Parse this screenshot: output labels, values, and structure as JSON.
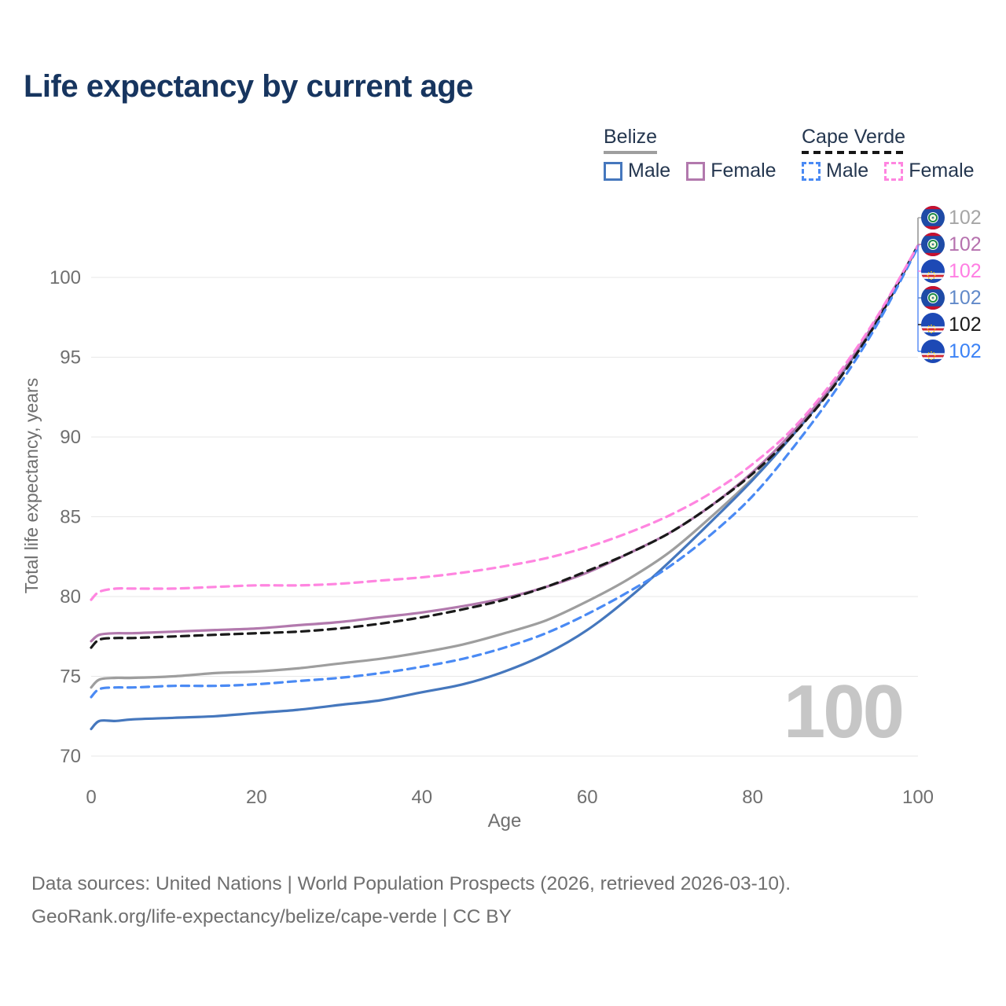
{
  "title": "Life expectancy by current age",
  "legend": {
    "groups": [
      {
        "label": "Belize",
        "underline_color": "#9e9e9e",
        "underline_style": "solid",
        "items": [
          {
            "label": "Male",
            "color": "#4577bd",
            "dash": false
          },
          {
            "label": "Female",
            "color": "#b279ad",
            "dash": false
          }
        ]
      },
      {
        "label": "Cape Verde",
        "underline_color": "#161616",
        "underline_style": "dashed",
        "items": [
          {
            "label": "Male",
            "color": "#4a8af4",
            "dash": true
          },
          {
            "label": "Female",
            "color": "#ff85e0",
            "dash": true
          }
        ]
      }
    ]
  },
  "chart_data": {
    "type": "line",
    "title": "Life expectancy by current age",
    "xlabel": "Age",
    "ylabel": "Total life expectancy, years",
    "x_ticks": [
      0,
      20,
      40,
      60,
      80,
      100
    ],
    "y_ticks": [
      70,
      75,
      80,
      85,
      90,
      95,
      100
    ],
    "xlim": [
      0,
      100
    ],
    "ylim": [
      68.5,
      103
    ],
    "grid": "horizontal-only",
    "legend_position": "top-right",
    "ages": [
      0,
      1,
      3,
      5,
      10,
      15,
      20,
      25,
      30,
      35,
      40,
      45,
      50,
      55,
      60,
      65,
      70,
      75,
      80,
      85,
      90,
      95,
      100
    ],
    "series": [
      {
        "id": "belize-total",
        "country": "Belize",
        "group": "Total",
        "color": "#9e9e9e",
        "dashed": false,
        "values": [
          74.3,
          74.8,
          74.9,
          74.9,
          75.0,
          75.2,
          75.3,
          75.5,
          75.8,
          76.1,
          76.5,
          77.0,
          77.7,
          78.5,
          79.7,
          81.1,
          82.8,
          85.0,
          87.4,
          90.2,
          93.4,
          97.3,
          102
        ]
      },
      {
        "id": "belize-male",
        "country": "Belize",
        "group": "Male",
        "color": "#4577bd",
        "dashed": false,
        "values": [
          71.7,
          72.2,
          72.2,
          72.3,
          72.4,
          72.5,
          72.7,
          72.9,
          73.2,
          73.5,
          74.0,
          74.5,
          75.3,
          76.4,
          77.9,
          79.9,
          82.2,
          84.7,
          87.3,
          90.2,
          93.4,
          97.3,
          102
        ]
      },
      {
        "id": "belize-female",
        "country": "Belize",
        "group": "Female",
        "color": "#b279ad",
        "dashed": false,
        "values": [
          77.2,
          77.6,
          77.7,
          77.7,
          77.8,
          77.9,
          78.0,
          78.2,
          78.4,
          78.7,
          79.0,
          79.4,
          79.9,
          80.6,
          81.5,
          82.7,
          84.0,
          85.7,
          87.8,
          90.4,
          93.5,
          97.4,
          102
        ]
      },
      {
        "id": "capeverde-total",
        "country": "Cape Verde",
        "group": "Total",
        "color": "#1a1a1a",
        "dashed": true,
        "values": [
          76.8,
          77.3,
          77.4,
          77.4,
          77.5,
          77.6,
          77.7,
          77.8,
          78.0,
          78.3,
          78.7,
          79.2,
          79.8,
          80.6,
          81.6,
          82.7,
          84.0,
          85.7,
          87.7,
          90.2,
          93.3,
          97.2,
          102
        ]
      },
      {
        "id": "capeverde-male",
        "country": "Cape Verde",
        "group": "Male",
        "color": "#4a8af4",
        "dashed": true,
        "values": [
          73.7,
          74.2,
          74.3,
          74.3,
          74.4,
          74.4,
          74.5,
          74.7,
          74.9,
          75.2,
          75.6,
          76.1,
          76.8,
          77.7,
          78.9,
          80.3,
          81.9,
          83.9,
          86.3,
          89.4,
          92.9,
          97.0,
          101.9
        ]
      },
      {
        "id": "capeverde-female",
        "country": "Cape Verde",
        "group": "Female",
        "color": "#ff85e0",
        "dashed": true,
        "values": [
          79.8,
          80.3,
          80.5,
          80.5,
          80.5,
          80.6,
          80.7,
          80.7,
          80.8,
          81.0,
          81.2,
          81.5,
          81.9,
          82.4,
          83.1,
          84.0,
          85.1,
          86.5,
          88.3,
          90.6,
          93.7,
          97.5,
          102
        ]
      }
    ],
    "end_labels": [
      {
        "value": "102",
        "color": "#a5a5a5",
        "flag": "belize",
        "series": "belize-total"
      },
      {
        "value": "102",
        "color": "#b671ae",
        "flag": "belize",
        "series": "belize-female"
      },
      {
        "value": "102",
        "color": "#ff7ee3",
        "flag": "capeverde",
        "series": "capeverde-female"
      },
      {
        "value": "102",
        "color": "#6189c9",
        "flag": "belize",
        "series": "belize-male"
      },
      {
        "value": "102",
        "color": "#1a1a1a",
        "flag": "capeverde",
        "series": "capeverde-total"
      },
      {
        "value": "102",
        "color": "#3b82f6",
        "flag": "capeverde",
        "series": "capeverde-male"
      }
    ],
    "age_counter": "100"
  },
  "footer": {
    "line1": "Data sources: United Nations | World Population Prospects (2026, retrieved 2026-03-10).",
    "line2": "GeoRank.org/life-expectancy/belize/cape-verde | CC BY"
  }
}
